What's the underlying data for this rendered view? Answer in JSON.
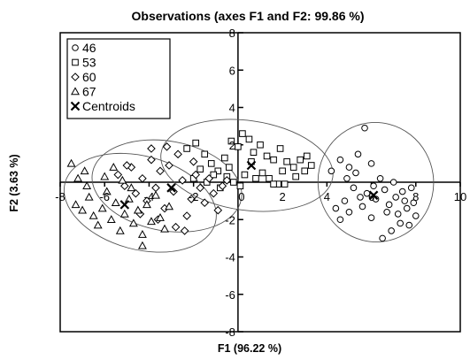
{
  "chart_data": {
    "type": "scatter",
    "title": "Observations (axes F1 and F2: 99.86 %)",
    "xlabel": "F1 (96.22 %)",
    "ylabel": "F2 (3.63 %)",
    "xlim": [
      -8,
      10
    ],
    "ylim": [
      -8,
      8
    ],
    "xticks": [
      "-8",
      "-6",
      "-4",
      "-2",
      "0",
      "2",
      "4",
      "6",
      "8",
      "10"
    ],
    "yticks": [
      "-8",
      "-6",
      "-4",
      "-2",
      "0",
      "2",
      "4",
      "6",
      "8"
    ],
    "legend_position": "top-left",
    "legend": [
      "46",
      "53",
      "60",
      "67",
      "Centroids"
    ],
    "series": [
      {
        "name": "46",
        "marker": "circle",
        "points": [
          [
            4.2,
            0.6
          ],
          [
            4.6,
            1.2
          ],
          [
            5.0,
            0.8
          ],
          [
            5.4,
            1.5
          ],
          [
            5.7,
            2.9
          ],
          [
            6.0,
            1.0
          ],
          [
            5.2,
            -0.3
          ],
          [
            4.8,
            -1.0
          ],
          [
            4.4,
            -1.4
          ],
          [
            4.6,
            -2.0
          ],
          [
            5.8,
            -0.6
          ],
          [
            6.2,
            -0.9
          ],
          [
            6.4,
            0.2
          ],
          [
            6.6,
            -0.4
          ],
          [
            6.8,
            -1.2
          ],
          [
            7.0,
            0.0
          ],
          [
            7.1,
            -0.8
          ],
          [
            7.2,
            -1.7
          ],
          [
            7.4,
            -0.5
          ],
          [
            7.5,
            -1.0
          ],
          [
            7.6,
            -1.4
          ],
          [
            7.8,
            -0.3
          ],
          [
            7.9,
            -1.1
          ],
          [
            8.0,
            -1.8
          ],
          [
            7.3,
            -2.2
          ],
          [
            6.9,
            -2.6
          ],
          [
            6.5,
            -3.0
          ],
          [
            6.0,
            -1.9
          ],
          [
            5.6,
            -1.3
          ],
          [
            5.0,
            -1.6
          ],
          [
            6.7,
            -1.6
          ],
          [
            7.7,
            -2.3
          ],
          [
            4.9,
            0.2
          ],
          [
            5.3,
            0.5
          ],
          [
            6.1,
            -0.2
          ],
          [
            5.5,
            -0.8
          ]
        ]
      },
      {
        "name": "53",
        "marker": "square",
        "points": [
          [
            -2.3,
            1.8
          ],
          [
            -1.9,
            2.1
          ],
          [
            -1.5,
            1.5
          ],
          [
            -1.2,
            1.0
          ],
          [
            -0.9,
            0.6
          ],
          [
            -0.6,
            1.3
          ],
          [
            -0.3,
            2.2
          ],
          [
            0.0,
            1.9
          ],
          [
            0.2,
            2.6
          ],
          [
            0.5,
            2.3
          ],
          [
            0.7,
            1.6
          ],
          [
            1.0,
            2.0
          ],
          [
            1.3,
            1.4
          ],
          [
            1.6,
            1.2
          ],
          [
            1.9,
            1.8
          ],
          [
            2.2,
            1.1
          ],
          [
            2.5,
            0.8
          ],
          [
            2.8,
            1.2
          ],
          [
            3.1,
            1.4
          ],
          [
            3.3,
            0.9
          ],
          [
            3.0,
            0.6
          ],
          [
            2.6,
            0.3
          ],
          [
            2.1,
            -0.1
          ],
          [
            1.8,
            -0.1
          ],
          [
            1.4,
            0.2
          ],
          [
            1.1,
            0.5
          ],
          [
            0.8,
            0.2
          ],
          [
            0.3,
            0.4
          ],
          [
            0.1,
            -0.2
          ],
          [
            -0.2,
            0.0
          ],
          [
            -0.5,
            0.3
          ],
          [
            -0.8,
            -0.3
          ],
          [
            -1.1,
            0.4
          ],
          [
            -1.4,
            0.0
          ],
          [
            -1.7,
            0.7
          ],
          [
            -2.0,
            0.2
          ],
          [
            1.6,
            -0.1
          ],
          [
            0.6,
            1.1
          ],
          [
            -0.4,
            0.8
          ],
          [
            2.0,
            0.6
          ]
        ]
      },
      {
        "name": "60",
        "marker": "diamond",
        "points": [
          [
            -5.4,
            0.4
          ],
          [
            -5.1,
            -0.2
          ],
          [
            -4.8,
            0.8
          ],
          [
            -4.6,
            -0.6
          ],
          [
            -4.3,
            0.2
          ],
          [
            -4.1,
            -1.0
          ],
          [
            -3.9,
            1.2
          ],
          [
            -3.7,
            -0.3
          ],
          [
            -3.5,
            0.6
          ],
          [
            -3.3,
            -1.4
          ],
          [
            -3.1,
            0.9
          ],
          [
            -2.9,
            -0.5
          ],
          [
            -2.7,
            1.5
          ],
          [
            -2.5,
            0.1
          ],
          [
            -2.3,
            -1.8
          ],
          [
            -2.1,
            -0.9
          ],
          [
            -1.9,
            0.4
          ],
          [
            -1.7,
            -0.3
          ],
          [
            -1.5,
            -1.1
          ],
          [
            -1.3,
            0.2
          ],
          [
            -1.1,
            -0.6
          ],
          [
            -0.9,
            -1.5
          ],
          [
            -0.7,
            -0.2
          ],
          [
            -0.5,
            0.1
          ],
          [
            -3.2,
            1.9
          ],
          [
            -2.8,
            -2.4
          ],
          [
            -4.4,
            -1.7
          ],
          [
            -3.6,
            -2.0
          ],
          [
            -2.0,
            1.1
          ],
          [
            -5.0,
            0.9
          ],
          [
            -3.9,
            1.8
          ],
          [
            -2.4,
            -2.6
          ]
        ]
      },
      {
        "name": "67",
        "marker": "triangle",
        "points": [
          [
            -7.5,
            1.0
          ],
          [
            -7.2,
            0.2
          ],
          [
            -6.9,
            0.6
          ],
          [
            -7.3,
            -1.2
          ],
          [
            -7.0,
            -1.5
          ],
          [
            -6.7,
            -0.8
          ],
          [
            -6.5,
            -1.8
          ],
          [
            -6.3,
            -2.3
          ],
          [
            -6.1,
            -1.4
          ],
          [
            -5.9,
            -0.5
          ],
          [
            -5.7,
            -2.0
          ],
          [
            -5.5,
            -1.1
          ],
          [
            -5.3,
            -2.6
          ],
          [
            -5.1,
            -1.7
          ],
          [
            -4.9,
            -0.9
          ],
          [
            -4.7,
            -2.2
          ],
          [
            -4.5,
            -1.5
          ],
          [
            -4.3,
            -2.8
          ],
          [
            -4.1,
            -1.2
          ],
          [
            -3.9,
            -2.1
          ],
          [
            -3.7,
            -0.7
          ],
          [
            -3.5,
            -1.9
          ],
          [
            -3.3,
            -2.5
          ],
          [
            -3.1,
            -1.3
          ],
          [
            -4.3,
            -3.4
          ],
          [
            -6.0,
            0.3
          ],
          [
            -5.6,
            0.8
          ],
          [
            -6.8,
            -0.2
          ],
          [
            -4.8,
            -0.3
          ],
          [
            -5.2,
            0.1
          ]
        ]
      }
    ],
    "centroids": [
      {
        "name": "46",
        "x": 6.1,
        "y": -0.7
      },
      {
        "name": "53",
        "x": 0.6,
        "y": 0.9
      },
      {
        "name": "60",
        "x": -3.0,
        "y": -0.3
      },
      {
        "name": "67",
        "x": -5.1,
        "y": -1.2
      }
    ],
    "ellipses": [
      {
        "series": "46",
        "cx": 6.2,
        "cy": 0.0,
        "rx": 2.6,
        "ry": 3.2,
        "angle_deg": -8
      },
      {
        "series": "53",
        "cx": 0.4,
        "cy": 0.9,
        "rx": 3.9,
        "ry": 2.4,
        "angle_deg": 8
      },
      {
        "series": "60",
        "cx": -3.2,
        "cy": -0.2,
        "rx": 3.4,
        "ry": 2.4,
        "angle_deg": 10
      },
      {
        "series": "67",
        "cx": -4.4,
        "cy": -1.1,
        "rx": 3.5,
        "ry": 2.5,
        "angle_deg": 15
      }
    ],
    "grid": false
  }
}
